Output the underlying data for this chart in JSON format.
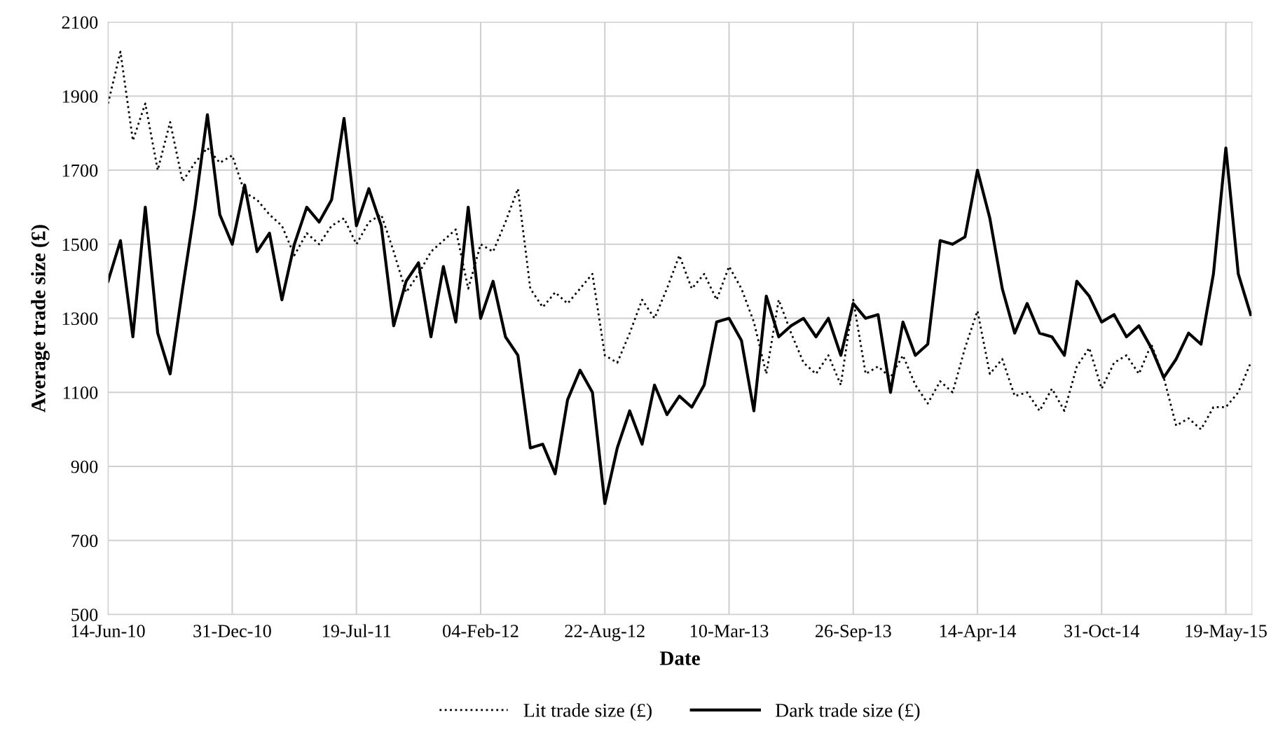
{
  "chart_data": {
    "type": "line",
    "xlabel": "Date",
    "ylabel": "Average trade size (£)",
    "x": [
      "2010-06-14",
      "2010-07-04",
      "2010-07-24",
      "2010-08-13",
      "2010-09-02",
      "2010-09-22",
      "2010-10-12",
      "2010-11-01",
      "2010-11-21",
      "2010-12-11",
      "2010-12-31",
      "2011-01-20",
      "2011-02-09",
      "2011-03-01",
      "2011-03-21",
      "2011-04-10",
      "2011-04-30",
      "2011-05-20",
      "2011-06-09",
      "2011-06-29",
      "2011-07-19",
      "2011-08-08",
      "2011-08-28",
      "2011-09-17",
      "2011-10-07",
      "2011-10-27",
      "2011-11-16",
      "2011-12-06",
      "2011-12-26",
      "2012-01-15",
      "2012-02-04",
      "2012-02-24",
      "2012-03-15",
      "2012-04-04",
      "2012-04-24",
      "2012-05-14",
      "2012-06-03",
      "2012-06-23",
      "2012-07-13",
      "2012-08-02",
      "2012-08-22",
      "2012-09-11",
      "2012-10-01",
      "2012-10-21",
      "2012-11-10",
      "2012-11-30",
      "2012-12-20",
      "2013-01-09",
      "2013-01-29",
      "2013-02-18",
      "2013-03-10",
      "2013-03-30",
      "2013-04-19",
      "2013-05-09",
      "2013-05-29",
      "2013-06-18",
      "2013-07-08",
      "2013-07-28",
      "2013-08-17",
      "2013-09-06",
      "2013-09-26",
      "2013-10-16",
      "2013-11-05",
      "2013-11-25",
      "2013-12-15",
      "2014-01-04",
      "2014-01-24",
      "2014-02-13",
      "2014-03-05",
      "2014-03-25",
      "2014-04-14",
      "2014-05-04",
      "2014-05-24",
      "2014-06-13",
      "2014-07-03",
      "2014-07-23",
      "2014-08-12",
      "2014-09-01",
      "2014-09-21",
      "2014-10-11",
      "2014-10-31",
      "2014-11-20",
      "2014-12-10",
      "2014-12-30",
      "2015-01-19",
      "2015-02-08",
      "2015-02-28",
      "2015-03-20",
      "2015-04-09",
      "2015-04-29",
      "2015-05-19",
      "2015-06-08",
      "2015-06-28"
    ],
    "series": [
      {
        "name": "Lit trade size (£)",
        "color": "#000000",
        "line_style": "dotted",
        "values": [
          1880,
          2020,
          1780,
          1880,
          1700,
          1830,
          1670,
          1720,
          1760,
          1720,
          1740,
          1640,
          1620,
          1580,
          1550,
          1470,
          1530,
          1500,
          1550,
          1570,
          1500,
          1560,
          1580,
          1480,
          1370,
          1420,
          1480,
          1510,
          1540,
          1380,
          1500,
          1480,
          1560,
          1650,
          1380,
          1330,
          1370,
          1340,
          1380,
          1420,
          1200,
          1180,
          1260,
          1350,
          1300,
          1380,
          1470,
          1380,
          1420,
          1350,
          1440,
          1380,
          1290,
          1150,
          1350,
          1260,
          1180,
          1150,
          1200,
          1120,
          1350,
          1150,
          1170,
          1140,
          1200,
          1120,
          1070,
          1130,
          1100,
          1220,
          1320,
          1150,
          1190,
          1090,
          1100,
          1050,
          1110,
          1050,
          1170,
          1220,
          1110,
          1180,
          1200,
          1150,
          1230,
          1140,
          1010,
          1030,
          1000,
          1060,
          1060,
          1100,
          1180
        ]
      },
      {
        "name": "Dark trade size (£)",
        "color": "#000000",
        "line_style": "solid",
        "values": [
          1400,
          1510,
          1250,
          1600,
          1260,
          1150,
          1380,
          1600,
          1850,
          1580,
          1500,
          1660,
          1480,
          1530,
          1350,
          1500,
          1600,
          1560,
          1620,
          1840,
          1550,
          1650,
          1550,
          1280,
          1400,
          1450,
          1250,
          1440,
          1290,
          1600,
          1300,
          1400,
          1250,
          1200,
          950,
          960,
          880,
          1080,
          1160,
          1100,
          800,
          950,
          1050,
          960,
          1120,
          1040,
          1090,
          1060,
          1120,
          1290,
          1300,
          1240,
          1050,
          1360,
          1250,
          1280,
          1300,
          1250,
          1300,
          1200,
          1340,
          1300,
          1310,
          1100,
          1290,
          1200,
          1230,
          1510,
          1500,
          1520,
          1700,
          1570,
          1380,
          1260,
          1340,
          1260,
          1250,
          1200,
          1400,
          1360,
          1290,
          1310,
          1250,
          1280,
          1220,
          1140,
          1190,
          1260,
          1230,
          1420,
          1760,
          1420,
          1310
        ]
      }
    ],
    "xlim": [
      "2010-06-14",
      "2015-06-30"
    ],
    "xticks": [
      {
        "value": "2010-06-14",
        "label": "14-Jun-10"
      },
      {
        "value": "2010-12-31",
        "label": "31-Dec-10"
      },
      {
        "value": "2011-07-19",
        "label": "19-Jul-11"
      },
      {
        "value": "2012-02-04",
        "label": "04-Feb-12"
      },
      {
        "value": "2012-08-22",
        "label": "22-Aug-12"
      },
      {
        "value": "2013-03-10",
        "label": "10-Mar-13"
      },
      {
        "value": "2013-09-26",
        "label": "26-Sep-13"
      },
      {
        "value": "2014-04-14",
        "label": "14-Apr-14"
      },
      {
        "value": "2014-10-31",
        "label": "31-Oct-14"
      },
      {
        "value": "2015-05-19",
        "label": "19-May-15"
      }
    ],
    "ylim": [
      500,
      2100
    ],
    "yticks": [
      500,
      700,
      900,
      1100,
      1300,
      1500,
      1700,
      1900,
      2100
    ],
    "grid": true,
    "legend": "bottom",
    "marker": "none"
  }
}
